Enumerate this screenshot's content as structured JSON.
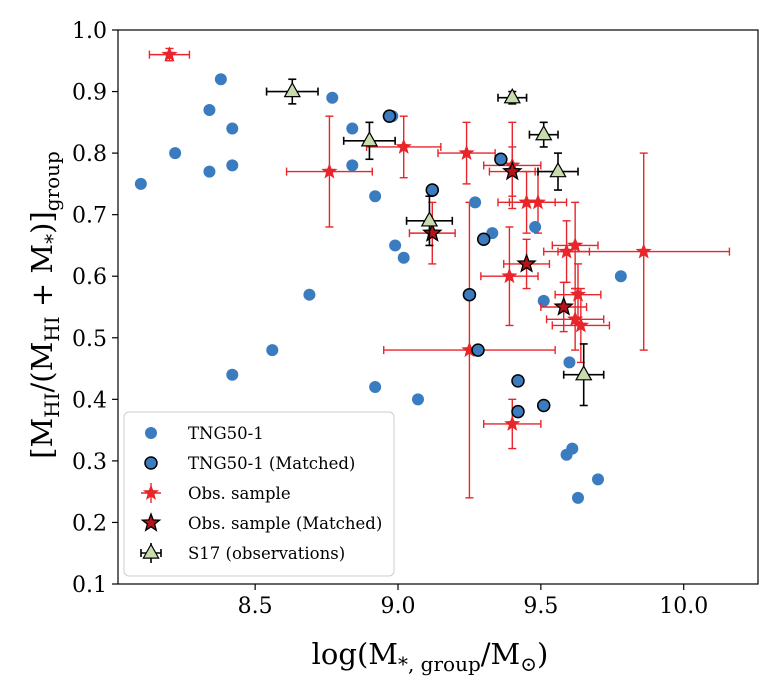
{
  "chart_data": {
    "type": "scatter",
    "title": "",
    "xlabel": "log(M*,group/M⊙)",
    "ylabel": "[MHI/(MHI+M*)]group",
    "xlabel_parts": {
      "base": "log(M",
      "sub": "*, group",
      "mid": "/M",
      "sub2": "⊙",
      "end": ")"
    },
    "ylabel_parts": {
      "open": "[M",
      "sub1": "HI",
      "mid": "/(M",
      "sub2": "HI",
      "plus": " + M",
      "sub3": "*",
      "close": ")]",
      "sub4": "group"
    },
    "xlim": [
      8.02,
      10.26
    ],
    "ylim": [
      0.1,
      1.0
    ],
    "xticks": [
      8.5,
      9.0,
      9.5,
      10.0
    ],
    "xtick_labels": [
      "8.5",
      "9.0",
      "9.5",
      "10.0"
    ],
    "yticks": [
      0.1,
      0.2,
      0.3,
      0.4,
      0.5,
      0.6,
      0.7,
      0.8,
      0.9,
      1.0
    ],
    "ytick_labels": [
      "0.1",
      "0.2",
      "0.3",
      "0.4",
      "0.5",
      "0.6",
      "0.7",
      "0.8",
      "0.9",
      "1.0"
    ],
    "legend_position": "lower-left",
    "colors": {
      "tng": "#3b7bbf",
      "obs": "#e8252b",
      "obs_matched": "#b5121b",
      "s17": "#c8dcae"
    },
    "series": [
      {
        "name": "TNG50-1",
        "marker": "circle",
        "points": [
          {
            "x": 8.1,
            "y": 0.75
          },
          {
            "x": 8.22,
            "y": 0.8
          },
          {
            "x": 8.34,
            "y": 0.87
          },
          {
            "x": 8.34,
            "y": 0.77
          },
          {
            "x": 8.38,
            "y": 0.92
          },
          {
            "x": 8.42,
            "y": 0.84
          },
          {
            "x": 8.42,
            "y": 0.78
          },
          {
            "x": 8.42,
            "y": 0.44
          },
          {
            "x": 8.56,
            "y": 0.48
          },
          {
            "x": 8.69,
            "y": 0.57
          },
          {
            "x": 8.77,
            "y": 0.89
          },
          {
            "x": 8.84,
            "y": 0.84
          },
          {
            "x": 8.84,
            "y": 0.78
          },
          {
            "x": 8.92,
            "y": 0.73
          },
          {
            "x": 8.92,
            "y": 0.42
          },
          {
            "x": 8.98,
            "y": 0.86
          },
          {
            "x": 8.99,
            "y": 0.65
          },
          {
            "x": 9.02,
            "y": 0.63
          },
          {
            "x": 9.07,
            "y": 0.4
          },
          {
            "x": 9.27,
            "y": 0.72
          },
          {
            "x": 9.33,
            "y": 0.67
          },
          {
            "x": 9.48,
            "y": 0.68
          },
          {
            "x": 9.51,
            "y": 0.56
          },
          {
            "x": 9.6,
            "y": 0.46
          },
          {
            "x": 9.61,
            "y": 0.32
          },
          {
            "x": 9.59,
            "y": 0.31
          },
          {
            "x": 9.63,
            "y": 0.24
          },
          {
            "x": 9.7,
            "y": 0.27
          },
          {
            "x": 9.78,
            "y": 0.6
          }
        ]
      },
      {
        "name": "TNG50-1 (Matched)",
        "marker": "circle-edged",
        "points": [
          {
            "x": 8.97,
            "y": 0.86
          },
          {
            "x": 9.12,
            "y": 0.74
          },
          {
            "x": 9.25,
            "y": 0.57
          },
          {
            "x": 9.28,
            "y": 0.48
          },
          {
            "x": 9.3,
            "y": 0.66
          },
          {
            "x": 9.36,
            "y": 0.79
          },
          {
            "x": 9.42,
            "y": 0.43
          },
          {
            "x": 9.42,
            "y": 0.38
          },
          {
            "x": 9.51,
            "y": 0.39
          }
        ]
      },
      {
        "name": "Obs. sample",
        "marker": "star",
        "points": [
          {
            "x": 8.2,
            "y": 0.96,
            "xerr": 0.07,
            "yerr": 0.01
          },
          {
            "x": 8.76,
            "y": 0.77,
            "xerr": 0.15,
            "yerr": 0.09
          },
          {
            "x": 9.02,
            "y": 0.81,
            "xerr": 0.13,
            "yerr": 0.05
          },
          {
            "x": 9.24,
            "y": 0.8,
            "xerr": 0.1,
            "yerr": 0.05
          },
          {
            "x": 9.4,
            "y": 0.78,
            "xerr": 0.1,
            "yerr": 0.07
          },
          {
            "x": 9.45,
            "y": 0.72,
            "xerr": 0.1,
            "yerr": 0.05
          },
          {
            "x": 9.49,
            "y": 0.72,
            "xerr": 0.1,
            "yerr": 0.05
          },
          {
            "x": 9.39,
            "y": 0.6,
            "xerr": 0.1,
            "yerr": 0.08
          },
          {
            "x": 9.25,
            "y": 0.48,
            "xerr": 0.3,
            "yerr": 0.24
          },
          {
            "x": 9.4,
            "y": 0.36,
            "xerr": 0.1,
            "yerr": 0.04
          },
          {
            "x": 9.59,
            "y": 0.64,
            "xerr": 0.08,
            "yerr": 0.05
          },
          {
            "x": 9.62,
            "y": 0.65,
            "xerr": 0.08,
            "yerr": 0.07
          },
          {
            "x": 9.62,
            "y": 0.53,
            "xerr": 0.1,
            "yerr": 0.05
          },
          {
            "x": 9.63,
            "y": 0.57,
            "xerr": 0.08,
            "yerr": 0.05
          },
          {
            "x": 9.64,
            "y": 0.52,
            "xerr": 0.1,
            "yerr": 0.06
          },
          {
            "x": 9.86,
            "y": 0.64,
            "xerr": 0.3,
            "yerr": 0.16
          }
        ]
      },
      {
        "name": "Obs. sample (Matched)",
        "marker": "star-edged",
        "points": [
          {
            "x": 9.12,
            "y": 0.67,
            "xerr": 0.08,
            "yerr": 0.05
          },
          {
            "x": 9.4,
            "y": 0.77,
            "xerr": 0.08,
            "yerr": 0.04
          },
          {
            "x": 9.45,
            "y": 0.62,
            "xerr": 0.08,
            "yerr": 0.04
          },
          {
            "x": 9.58,
            "y": 0.55,
            "xerr": 0.08,
            "yerr": 0.04
          }
        ]
      },
      {
        "name": "S17 (observations)",
        "marker": "triangle",
        "points": [
          {
            "x": 8.63,
            "y": 0.9,
            "xerr": 0.09,
            "yerr": 0.02
          },
          {
            "x": 8.9,
            "y": 0.82,
            "xerr": 0.09,
            "yerr": 0.03
          },
          {
            "x": 9.11,
            "y": 0.69,
            "xerr": 0.08,
            "yerr": 0.04
          },
          {
            "x": 9.4,
            "y": 0.89,
            "xerr": 0.05,
            "yerr": 0.01
          },
          {
            "x": 9.51,
            "y": 0.83,
            "xerr": 0.05,
            "yerr": 0.02
          },
          {
            "x": 9.56,
            "y": 0.77,
            "xerr": 0.07,
            "yerr": 0.03
          },
          {
            "x": 9.65,
            "y": 0.44,
            "xerr": 0.07,
            "yerr": 0.05
          }
        ]
      }
    ],
    "legend": [
      "TNG50-1",
      "TNG50-1 (Matched)",
      "Obs. sample",
      "Obs. sample (Matched)",
      "S17 (observations)"
    ]
  }
}
